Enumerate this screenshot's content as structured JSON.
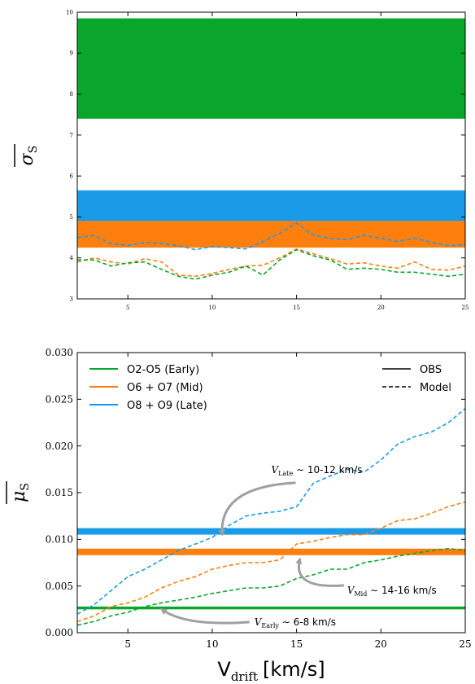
{
  "chart_data": [
    {
      "type": "band",
      "panel": "top",
      "ylabel": "σ̄_S",
      "ylabel_main": "σ",
      "ylabel_sub": "S",
      "xlim": [
        2,
        25
      ],
      "ylim": [
        3,
        10
      ],
      "xticks": [
        5,
        10,
        15,
        20,
        25
      ],
      "yticks": [
        3,
        4,
        5,
        6,
        7,
        8,
        9,
        10
      ],
      "obs_bands": [
        {
          "name": "O2-O5 (Early)",
          "color": "#0aa62c",
          "range": [
            7.4,
            9.85
          ]
        },
        {
          "name": "O8 + O9 (Late)",
          "color": "#1a9be8",
          "range": [
            4.9,
            5.65
          ]
        },
        {
          "name": "O6 + O7 (Mid)",
          "color": "#ff7f0e",
          "range": [
            4.25,
            4.9
          ]
        }
      ],
      "series": [
        {
          "color": "#1a9be8",
          "x": [
            2,
            3,
            4,
            5,
            6,
            7,
            8,
            9,
            10,
            11,
            12,
            13,
            14,
            15,
            16,
            17,
            18,
            19,
            20,
            21,
            22,
            23,
            24,
            25
          ],
          "values": [
            4.5,
            4.55,
            4.35,
            4.3,
            4.38,
            4.35,
            4.3,
            4.2,
            4.28,
            4.25,
            4.22,
            4.4,
            4.6,
            4.85,
            4.55,
            4.48,
            4.45,
            4.55,
            4.48,
            4.4,
            4.48,
            4.38,
            4.3,
            4.32
          ]
        },
        {
          "color": "#ff7f0e",
          "x": [
            2,
            3,
            4,
            5,
            6,
            7,
            8,
            9,
            10,
            11,
            12,
            13,
            14,
            15,
            16,
            17,
            18,
            19,
            20,
            21,
            22,
            23,
            24,
            25
          ],
          "values": [
            3.9,
            4.0,
            3.9,
            3.85,
            3.98,
            3.9,
            3.58,
            3.55,
            3.62,
            3.72,
            3.8,
            3.82,
            4.0,
            4.22,
            4.1,
            3.98,
            3.85,
            3.88,
            3.8,
            3.75,
            3.9,
            3.72,
            3.7,
            3.8
          ]
        },
        {
          "color": "#0aa62c",
          "x": [
            2,
            3,
            4,
            5,
            6,
            7,
            8,
            9,
            10,
            11,
            12,
            13,
            14,
            15,
            16,
            17,
            18,
            19,
            20,
            21,
            22,
            23,
            24,
            25
          ],
          "values": [
            3.95,
            3.95,
            3.8,
            3.88,
            3.9,
            3.72,
            3.55,
            3.48,
            3.58,
            3.65,
            3.8,
            3.58,
            3.95,
            4.2,
            4.05,
            3.95,
            3.72,
            3.75,
            3.72,
            3.65,
            3.65,
            3.6,
            3.55,
            3.6
          ]
        }
      ]
    },
    {
      "type": "band",
      "panel": "bottom",
      "ylabel": "μ̄_S",
      "ylabel_main": "μ",
      "ylabel_sub": "S",
      "xlabel_main": "V",
      "xlabel_sub": "drift",
      "xlabel_unit": "[km/s]",
      "xlim": [
        2,
        25
      ],
      "ylim": [
        0.0,
        0.03
      ],
      "xticks": [
        5,
        10,
        15,
        20,
        25
      ],
      "yticks": [
        0.0,
        0.005,
        0.01,
        0.015,
        0.02,
        0.025,
        0.03
      ],
      "ytick_labels": [
        "0.000",
        "0.005",
        "0.010",
        "0.015",
        "0.020",
        "0.025",
        "0.030"
      ],
      "legend_placement": "top-left",
      "legend": [
        {
          "label": "O2-O5 (Early)",
          "color": "#0aa62c"
        },
        {
          "label": "O6 + O7 (Mid)",
          "color": "#ff7f0e"
        },
        {
          "label": "O8 + O9 (Late)",
          "color": "#1a9be8"
        }
      ],
      "style_legend": [
        {
          "label": "OBS",
          "style": "solid"
        },
        {
          "label": "Model",
          "style": "dashed"
        }
      ],
      "obs_bands": [
        {
          "name": "O8 + O9 (Late)",
          "color": "#1a9be8",
          "range": [
            0.0105,
            0.0112
          ]
        },
        {
          "name": "O6 + O7 (Mid)",
          "color": "#ff7f0e",
          "range": [
            0.0083,
            0.009
          ]
        },
        {
          "name": "O2-O5 (Early)",
          "color": "#0aa62c",
          "range": [
            0.0025,
            0.0028
          ]
        }
      ],
      "series": [
        {
          "color": "#1a9be8",
          "x": [
            2,
            3,
            4,
            5,
            6,
            7,
            8,
            9,
            10,
            11,
            12,
            13,
            14,
            15,
            16,
            17,
            18,
            19,
            20,
            21,
            22,
            23,
            24,
            25
          ],
          "values": [
            0.002,
            0.003,
            0.0045,
            0.006,
            0.0068,
            0.0078,
            0.0088,
            0.0095,
            0.0102,
            0.0115,
            0.0125,
            0.0128,
            0.013,
            0.0135,
            0.016,
            0.0168,
            0.0175,
            0.0172,
            0.0185,
            0.0202,
            0.021,
            0.0215,
            0.0225,
            0.024
          ]
        },
        {
          "color": "#ff7f0e",
          "x": [
            2,
            3,
            4,
            5,
            6,
            7,
            8,
            9,
            10,
            11,
            12,
            13,
            14,
            15,
            16,
            17,
            18,
            19,
            20,
            21,
            22,
            23,
            24,
            25
          ],
          "values": [
            0.0012,
            0.0018,
            0.0028,
            0.0032,
            0.0038,
            0.0048,
            0.0055,
            0.006,
            0.0068,
            0.0072,
            0.0075,
            0.0075,
            0.0078,
            0.0095,
            0.0098,
            0.0102,
            0.0105,
            0.0105,
            0.0112,
            0.012,
            0.0122,
            0.0128,
            0.0135,
            0.014
          ]
        },
        {
          "color": "#0aa62c",
          "x": [
            2,
            3,
            4,
            5,
            6,
            7,
            8,
            9,
            10,
            11,
            12,
            13,
            14,
            15,
            16,
            17,
            18,
            19,
            20,
            21,
            22,
            23,
            24,
            25
          ],
          "values": [
            0.0008,
            0.0012,
            0.0018,
            0.0022,
            0.0028,
            0.0032,
            0.0035,
            0.0038,
            0.0042,
            0.0045,
            0.0048,
            0.0048,
            0.005,
            0.0058,
            0.0062,
            0.0068,
            0.0068,
            0.0075,
            0.0078,
            0.0082,
            0.0085,
            0.0088,
            0.009,
            0.0088
          ]
        }
      ],
      "annotations": [
        {
          "main": "V",
          "sub": "Late",
          "rest": " ∼ 10-12 km/s",
          "target": [
            10.6,
            0.0105
          ],
          "text_at": [
            13.5,
            0.0171
          ]
        },
        {
          "main": "V",
          "sub": "Mid",
          "rest": " ∼ 14-16 km/s",
          "target": [
            15.2,
            0.0079
          ],
          "text_at": [
            18.0,
            0.0042
          ]
        },
        {
          "main": "V",
          "sub": "Early",
          "rest": " ∼ 6-8 km/s",
          "target": [
            7.0,
            0.0025
          ],
          "text_at": [
            12.5,
            0.0008
          ]
        }
      ]
    }
  ]
}
